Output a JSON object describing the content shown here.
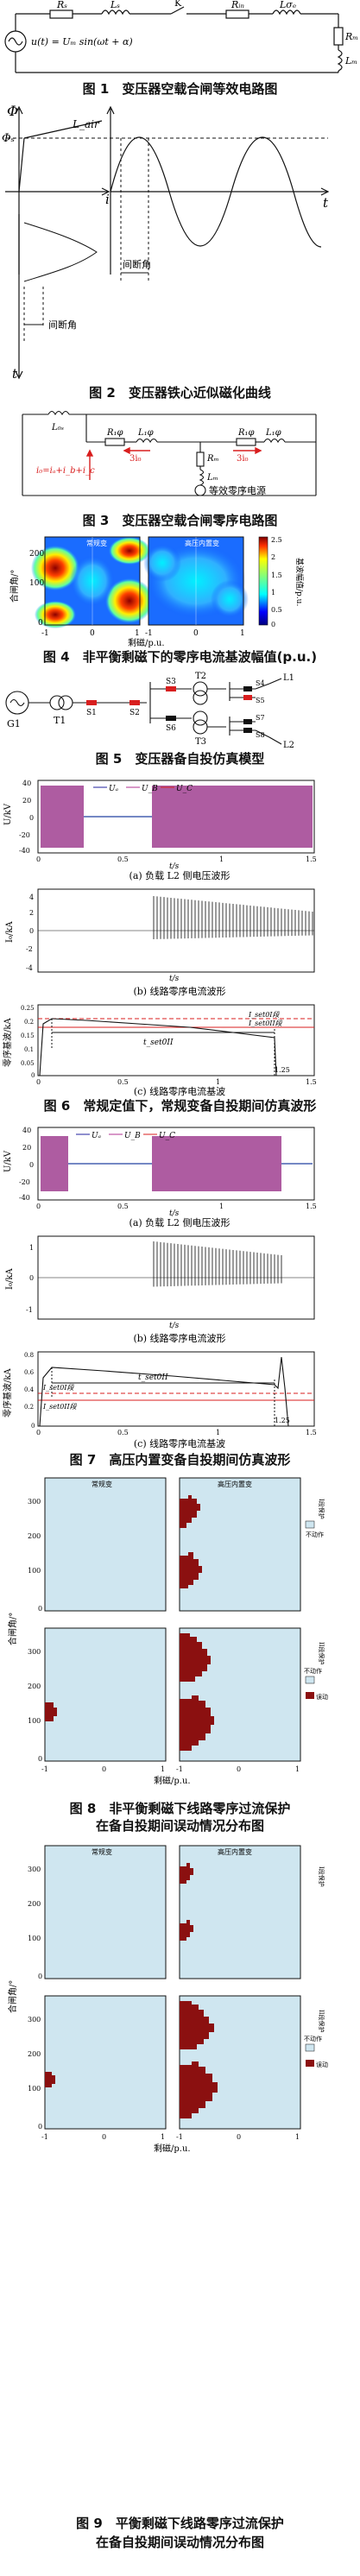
{
  "captions": {
    "fig1": "图 1　变压器空载合闸等效电路图",
    "fig2": "图 2　变压器铁心近似磁化曲线",
    "fig3": "图 3　变压器空载合闸零序电路图",
    "fig4": "图 4　非平衡剩磁下的零序电流基波幅值(p.u.)",
    "fig5": "图 5　变压器备自投仿真模型",
    "fig6": "图 6　常规定值下，常规变备自投期间仿真波形",
    "fig7": "图 7　高压内置变备自投期间仿真波形",
    "fig8a": "图 8　非平衡剩磁下线路零序过流保护",
    "fig8b": "在备自投期间误动情况分布图",
    "fig9a": "图 9　平衡剩磁下线路零序过流保护",
    "fig9b": "在备自投期间误动情况分布图"
  },
  "fig1": {
    "Rs": "Rₛ",
    "Ls": "Lₛ",
    "K": "K",
    "R1": "Rᵢₙ",
    "L1": "Lσₑ",
    "Rm": "Rₘ",
    "Lm": "Lₘ",
    "source": "u(t) = Uₘ sin(ωt + α)"
  },
  "fig2": {
    "phi_axis": "Φ",
    "phi_s": "Φₛ",
    "l_air": "L_air",
    "i_axis": "i",
    "t_axis": "t",
    "t_axis2": "t",
    "gap1": "间断角",
    "gap2": "间断角"
  },
  "fig3": {
    "L0s": "L₀ₛ",
    "R1a": "R₁φ",
    "L1a": "L₁φ",
    "R1b": "R₁φ",
    "L1b": "L₁φ",
    "Rm": "Rₘ",
    "Lm": "Lₘ",
    "i1": "3i₀",
    "i2": "3i₀",
    "i0": "i₀=iₐ+i_b+i_c",
    "src": "等效零序电源"
  },
  "fig4": {
    "panel_left": "常规变",
    "panel_right": "高压内置变",
    "y_axis": "合闸角/°",
    "x_axis": "剩磁/p.u.",
    "y_ticks": [
      "200",
      "100",
      "0"
    ],
    "x_ticks": [
      "-1",
      "0",
      "1",
      "-1",
      "0",
      "1"
    ],
    "cbar_ticks": [
      "2.5",
      "2",
      "1.5",
      "1",
      "0.5",
      "0"
    ],
    "cbar_label": "基波幅值/p.u."
  },
  "fig5": {
    "G1": "G1",
    "T1": "T1",
    "T2": "T2",
    "T3": "T3",
    "S1": "S1",
    "S2": "S2",
    "S3": "S3",
    "S4": "S4",
    "S5": "S5",
    "S6": "S6",
    "S7": "S7",
    "S8": "S8",
    "L1": "L1",
    "L2": "L2"
  },
  "fig6": {
    "a": {
      "ylabel": "U/kV",
      "yticks": [
        "40",
        "20",
        "0",
        "-20",
        "-40"
      ],
      "legend": [
        "Uₐ",
        "U_B",
        "U_C"
      ],
      "sub": "(a) 负载 L2 侧电压波形"
    },
    "b": {
      "ylabel": "I₀/kA",
      "yticks": [
        "4",
        "2",
        "0",
        "-2",
        "-4"
      ],
      "sub": "(b) 线路零序电流波形"
    },
    "c": {
      "ylabel": "零序基波/kA",
      "yticks": [
        "0.25",
        "0.2",
        "0.15",
        "0.1",
        "0.05",
        "0"
      ],
      "set1": "I_set0I段",
      "set2": "I_set0II段",
      "tset": "t_set0II",
      "sub": "(c) 线路零序电流基波"
    },
    "xlabel": "t/s",
    "xticks": [
      "0",
      "0.5",
      "1",
      "1.5"
    ],
    "mark": "1.25"
  },
  "fig7": {
    "a": {
      "ylabel": "U/kV",
      "yticks": [
        "40",
        "20",
        "0",
        "-20",
        "-40"
      ],
      "legend": [
        "Uₐ",
        "U_B",
        "U_C"
      ],
      "sub": "(a) 负载 L2 侧电压波形"
    },
    "b": {
      "ylabel": "I₀/kA",
      "yticks": [
        "1",
        "0",
        "-1"
      ],
      "sub": "(b) 线路零序电流波形"
    },
    "c": {
      "ylabel": "零序基波/kA",
      "yticks": [
        "0.8",
        "0.6",
        "0.4",
        "0.2",
        "0"
      ],
      "set1": "I_set0I段",
      "set2": "I_set0II段",
      "tset": "t_set0II",
      "sub": "(c) 线路零序电流基波"
    },
    "xlabel": "t/s",
    "xticks": [
      "0",
      "0.5",
      "1",
      "1.5"
    ],
    "mark": "1.25"
  },
  "fig8": {
    "left": "常规变",
    "right": "高压内置变",
    "ylabel": "合闸角/°",
    "xlabel": "剩磁/p.u.",
    "yticks": [
      "300",
      "200",
      "100",
      "0"
    ],
    "xticks": [
      "-1",
      "0",
      "1",
      "-1",
      "0",
      "1"
    ],
    "legend": [
      "不动作",
      "误动"
    ],
    "row_labels": [
      "I段保护",
      "II段保护"
    ]
  },
  "fig9": {
    "left": "常规变",
    "right": "高压内置变",
    "ylabel": "合闸角/°",
    "xlabel": "剩磁/p.u.",
    "yticks": [
      "300",
      "200",
      "100",
      "0"
    ],
    "xticks": [
      "-1",
      "0",
      "1",
      "-1",
      "0",
      "1"
    ],
    "legend": [
      "不动作",
      "误动"
    ],
    "row_labels": [
      "I段保护",
      "II段保护"
    ]
  },
  "colors": {
    "pink": "#f07878",
    "red": "#d81e1e",
    "panel": "#cfe6f0",
    "dark_red": "#8b1010",
    "blue": "#1f1f9e",
    "magenta": "#b03090"
  }
}
